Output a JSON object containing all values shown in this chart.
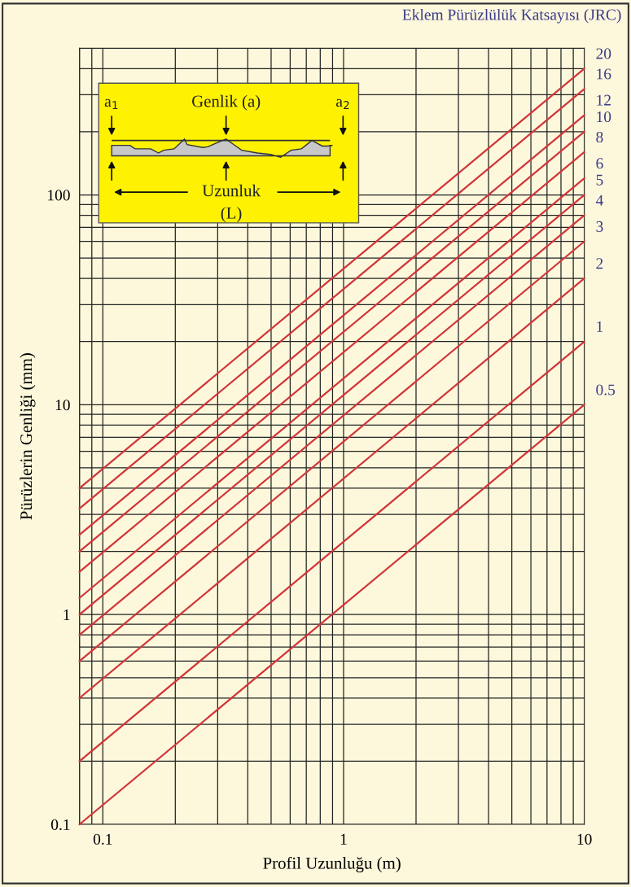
{
  "chart_data": {
    "type": "line",
    "title": "Eklem Pürüzlülük Katsayısı (JRC)",
    "xlabel": "Profil Uzunluğu (m)",
    "ylabel": "Pürüzlerin Genliği (mm)",
    "annotations": [
      "a$_{1}$",
      "Genlik (a)",
      "a$_{2}$",
      "Uzunluk",
      "(L)"
    ],
    "log": "xy",
    "xlim": [
      0.08,
      10
    ],
    "ylim": [
      0.1,
      500
    ],
    "xticks": [
      0.1,
      1,
      10
    ],
    "yticks": [
      0.1,
      1,
      10,
      100
    ],
    "grid": true,
    "legend": false,
    "marker": "none",
    "line_style": "solid",
    "x": [
      0.08,
      10
    ],
    "series": [
      {
        "name": "0.5",
        "color": "#d0353a",
        "values": [
          0.1,
          10
        ]
      },
      {
        "name": "1",
        "color": "#d0353a",
        "values": [
          0.2,
          20
        ]
      },
      {
        "name": "2",
        "color": "#d0353a",
        "values": [
          0.4,
          40
        ]
      },
      {
        "name": "3",
        "color": "#d0353a",
        "values": [
          0.6,
          60
        ]
      },
      {
        "name": "4",
        "color": "#d0353a",
        "values": [
          0.8,
          80
        ]
      },
      {
        "name": "5",
        "color": "#d0353a",
        "values": [
          1.0,
          100
        ]
      },
      {
        "name": "6",
        "color": "#d0353a",
        "values": [
          1.2,
          120
        ]
      },
      {
        "name": "8",
        "color": "#d0353a",
        "values": [
          1.6,
          160
        ]
      },
      {
        "name": "10",
        "color": "#d0353a",
        "values": [
          2.0,
          200
        ]
      },
      {
        "name": "12",
        "color": "#d0353a",
        "values": [
          2.4,
          240
        ]
      },
      {
        "name": "16",
        "color": "#d0353a",
        "values": [
          3.2,
          320
        ]
      },
      {
        "name": "20",
        "color": "#d0353a",
        "values": [
          4.0,
          400
        ]
      }
    ]
  }
}
